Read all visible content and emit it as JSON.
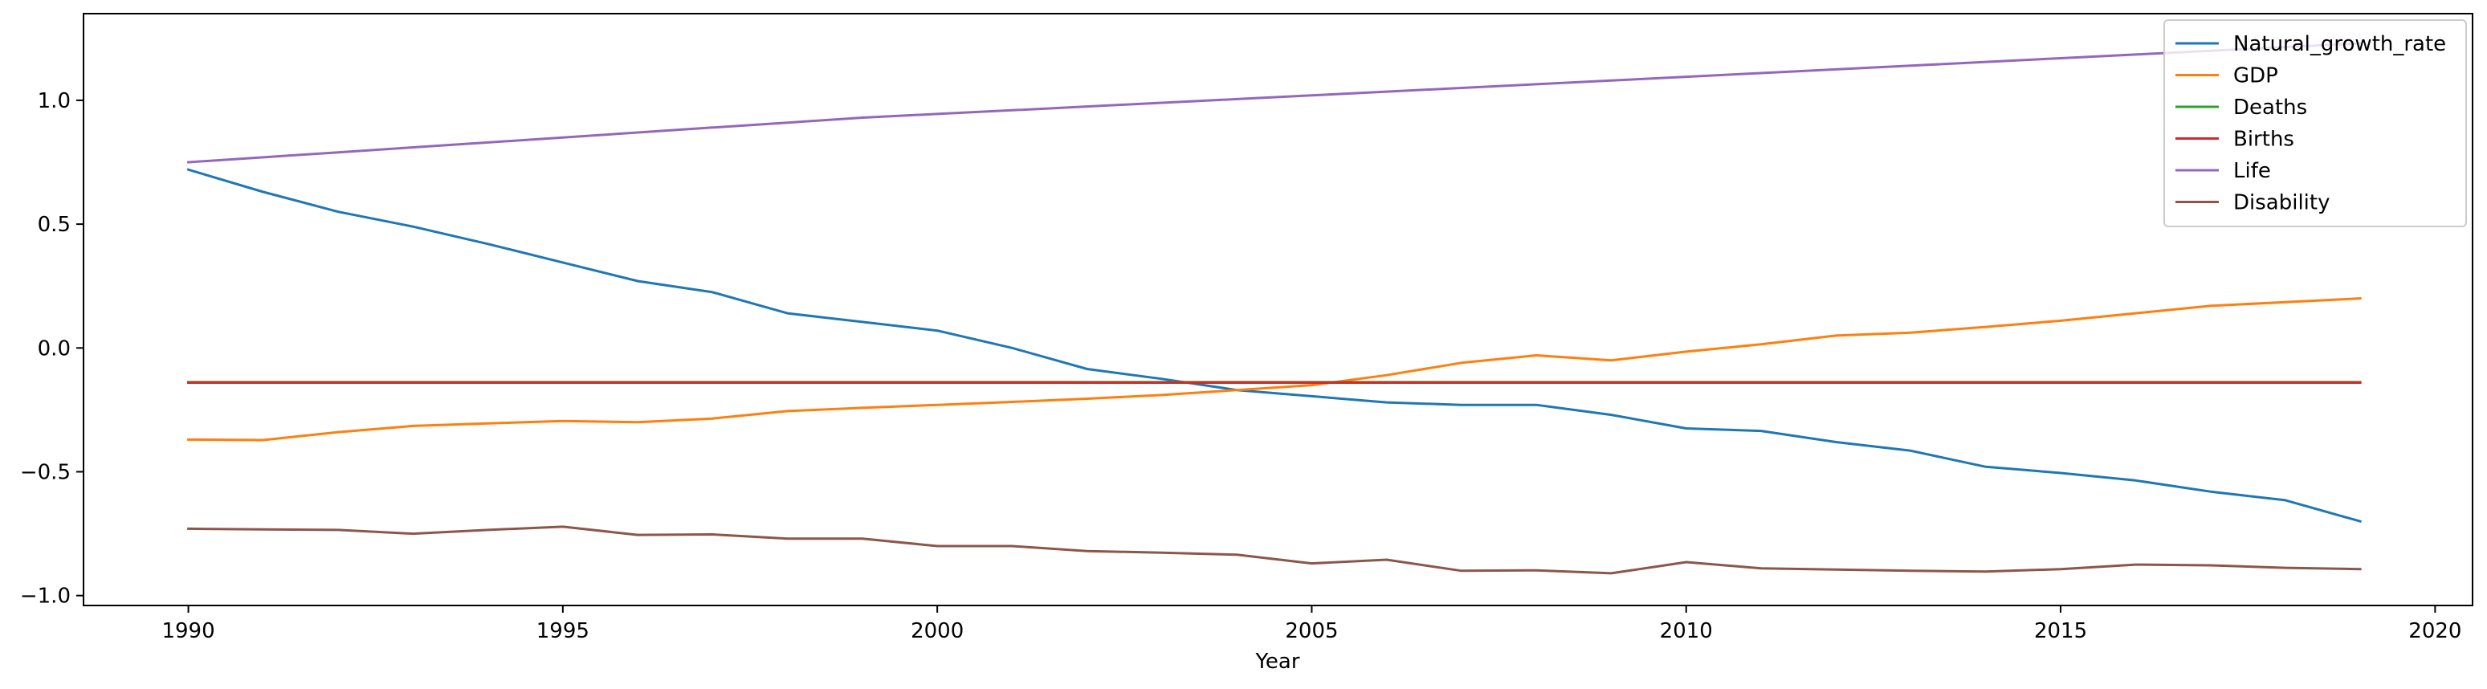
{
  "chart_data": {
    "type": "line",
    "title": "",
    "xlabel": "Year",
    "ylabel": "",
    "xlim": [
      1988.6,
      2020.5
    ],
    "ylim": [
      -1.04,
      1.35
    ],
    "x_ticks": [
      1990,
      1995,
      2000,
      2005,
      2010,
      2015,
      2020
    ],
    "x_tick_labels": [
      "1990",
      "1995",
      "2000",
      "2005",
      "2010",
      "2015",
      "2020"
    ],
    "y_ticks": [
      1.0,
      0.5,
      0.0,
      -0.5,
      -1.0
    ],
    "y_tick_labels": [
      "1.0",
      "0.5",
      "0.0",
      "−0.5",
      "−1.0"
    ],
    "grid": false,
    "legend_position": "top-right",
    "x": [
      1990,
      1991,
      1992,
      1993,
      1994,
      1995,
      1996,
      1997,
      1998,
      1999,
      2000,
      2001,
      2002,
      2003,
      2004,
      2005,
      2006,
      2007,
      2008,
      2009,
      2010,
      2011,
      2012,
      2013,
      2014,
      2015,
      2016,
      2017,
      2018,
      2019
    ],
    "series": [
      {
        "name": "Natural_growth_rate",
        "color": "#1f77b4",
        "values": [
          0.72,
          0.63,
          0.55,
          0.49,
          0.42,
          0.345,
          0.27,
          0.225,
          0.14,
          0.105,
          0.07,
          0.0,
          -0.085,
          -0.125,
          -0.17,
          -0.195,
          -0.22,
          -0.23,
          -0.23,
          -0.27,
          -0.325,
          -0.335,
          -0.38,
          -0.415,
          -0.48,
          -0.505,
          -0.535,
          -0.58,
          -0.615,
          -0.7
        ]
      },
      {
        "name": "GDP",
        "color": "#ff7f0e",
        "values": [
          -0.37,
          -0.372,
          -0.34,
          -0.315,
          -0.305,
          -0.295,
          -0.3,
          -0.285,
          -0.255,
          -0.242,
          -0.23,
          -0.218,
          -0.205,
          -0.19,
          -0.17,
          -0.15,
          -0.11,
          -0.06,
          -0.03,
          -0.05,
          -0.015,
          0.015,
          0.05,
          0.062,
          0.085,
          0.11,
          0.14,
          0.17,
          0.185,
          0.2
        ]
      },
      {
        "name": "Deaths",
        "color": "#2ca02c",
        "values": [
          -0.138,
          -0.138,
          -0.138,
          -0.138,
          -0.138,
          -0.138,
          -0.138,
          -0.138,
          -0.138,
          -0.138,
          -0.138,
          -0.138,
          -0.138,
          -0.138,
          -0.138,
          -0.138,
          -0.138,
          -0.138,
          -0.138,
          -0.138,
          -0.138,
          -0.138,
          -0.138,
          -0.138,
          -0.138,
          -0.138,
          -0.138,
          -0.138,
          -0.138,
          -0.138
        ]
      },
      {
        "name": "Births",
        "color": "#d62728",
        "values": [
          -0.14,
          -0.14,
          -0.14,
          -0.14,
          -0.14,
          -0.14,
          -0.14,
          -0.14,
          -0.14,
          -0.14,
          -0.14,
          -0.14,
          -0.14,
          -0.14,
          -0.14,
          -0.14,
          -0.14,
          -0.14,
          -0.14,
          -0.14,
          -0.14,
          -0.14,
          -0.14,
          -0.14,
          -0.14,
          -0.14,
          -0.14,
          -0.14,
          -0.14,
          -0.14
        ]
      },
      {
        "name": "Life",
        "color": "#9467bd",
        "values": [
          0.75,
          0.77,
          0.79,
          0.81,
          0.83,
          0.85,
          0.87,
          0.89,
          0.91,
          0.93,
          0.945,
          0.96,
          0.975,
          0.99,
          1.005,
          1.02,
          1.035,
          1.05,
          1.065,
          1.08,
          1.095,
          1.11,
          1.125,
          1.14,
          1.155,
          1.17,
          1.185,
          1.2,
          1.215,
          1.23
        ]
      },
      {
        "name": "Disability",
        "color": "#8c564b",
        "values": [
          -0.73,
          -0.733,
          -0.735,
          -0.75,
          -0.735,
          -0.722,
          -0.755,
          -0.753,
          -0.77,
          -0.77,
          -0.8,
          -0.8,
          -0.82,
          -0.827,
          -0.835,
          -0.87,
          -0.855,
          -0.9,
          -0.898,
          -0.91,
          -0.865,
          -0.89,
          -0.895,
          -0.9,
          -0.903,
          -0.893,
          -0.875,
          -0.878,
          -0.888,
          -0.893
        ]
      }
    ]
  }
}
